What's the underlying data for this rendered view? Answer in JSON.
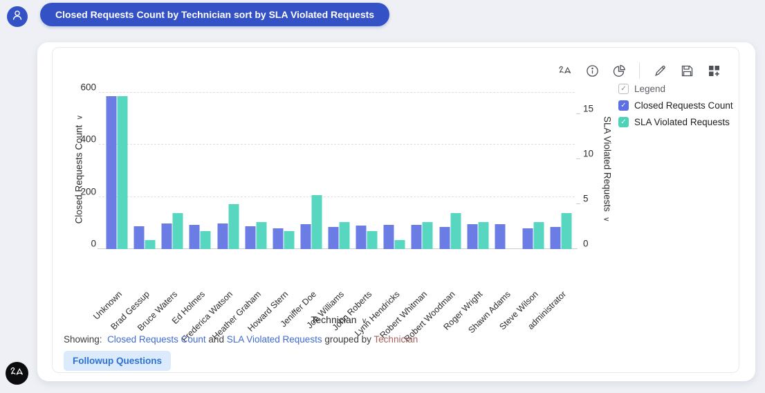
{
  "query_bar": {
    "text": "Closed Requests Count by Technician sort by SLA Violated Requests"
  },
  "toolbar": {
    "icons": [
      "zia-insights",
      "info",
      "chart-type",
      "edit",
      "save",
      "add-to-dashboard"
    ]
  },
  "legend": {
    "title": "Legend",
    "items": [
      {
        "label": "Closed Requests Count",
        "color": "#5c6fe3"
      },
      {
        "label": "SLA Violated Requests",
        "color": "#4ed2b8"
      }
    ]
  },
  "chart_data": {
    "type": "bar",
    "categories": [
      "Unknown",
      "Brad Gessup",
      "Bruce Waters",
      "Ed Holmes",
      "Frederica Watson",
      "Heather Graham",
      "Howard Stern",
      "Jeniffer Doe",
      "Joe Williams",
      "John Roberts",
      "Lynn Hendricks",
      "Robert Whitman",
      "Robert Woodman",
      "Roger Wright",
      "Shawn Adams",
      "Steve Wilson",
      "administrator"
    ],
    "series": [
      {
        "name": "Closed Requests Count",
        "axis": "left",
        "color": "#6b7de4",
        "values": [
          585,
          88,
          97,
          92,
          98,
          88,
          80,
          96,
          85,
          90,
          92,
          92,
          85,
          96,
          95,
          80,
          85
        ]
      },
      {
        "name": "SLA Violated Requests",
        "axis": "right",
        "color": "#58d7c0",
        "values": [
          17,
          1,
          4,
          2,
          5,
          3,
          2,
          6,
          3,
          2,
          1,
          3,
          4,
          3,
          0,
          3,
          4
        ]
      }
    ],
    "left_axis": {
      "label": "Closed Requests Count",
      "ticks": [
        0,
        200,
        400,
        600
      ],
      "max": 634
    },
    "right_axis": {
      "label": "SLA Violated Requests",
      "ticks": [
        0,
        5,
        10,
        15
      ],
      "max": 18.4
    },
    "x_axis": {
      "label": "Technician"
    },
    "grid": "horizontal dashed at left-axis ticks",
    "legend_position": "right",
    "title": "Closed Requests Count by Technician sort by SLA Violated Requests"
  },
  "footer": {
    "showing_label": "Showing:",
    "measure1": "Closed Requests Count",
    "and_text": "and",
    "measure2": "SLA Violated Requests",
    "grouped_by_text": "grouped by",
    "dimension": "Technician",
    "followup_button": "Followup Questions"
  },
  "chevron": "∨"
}
